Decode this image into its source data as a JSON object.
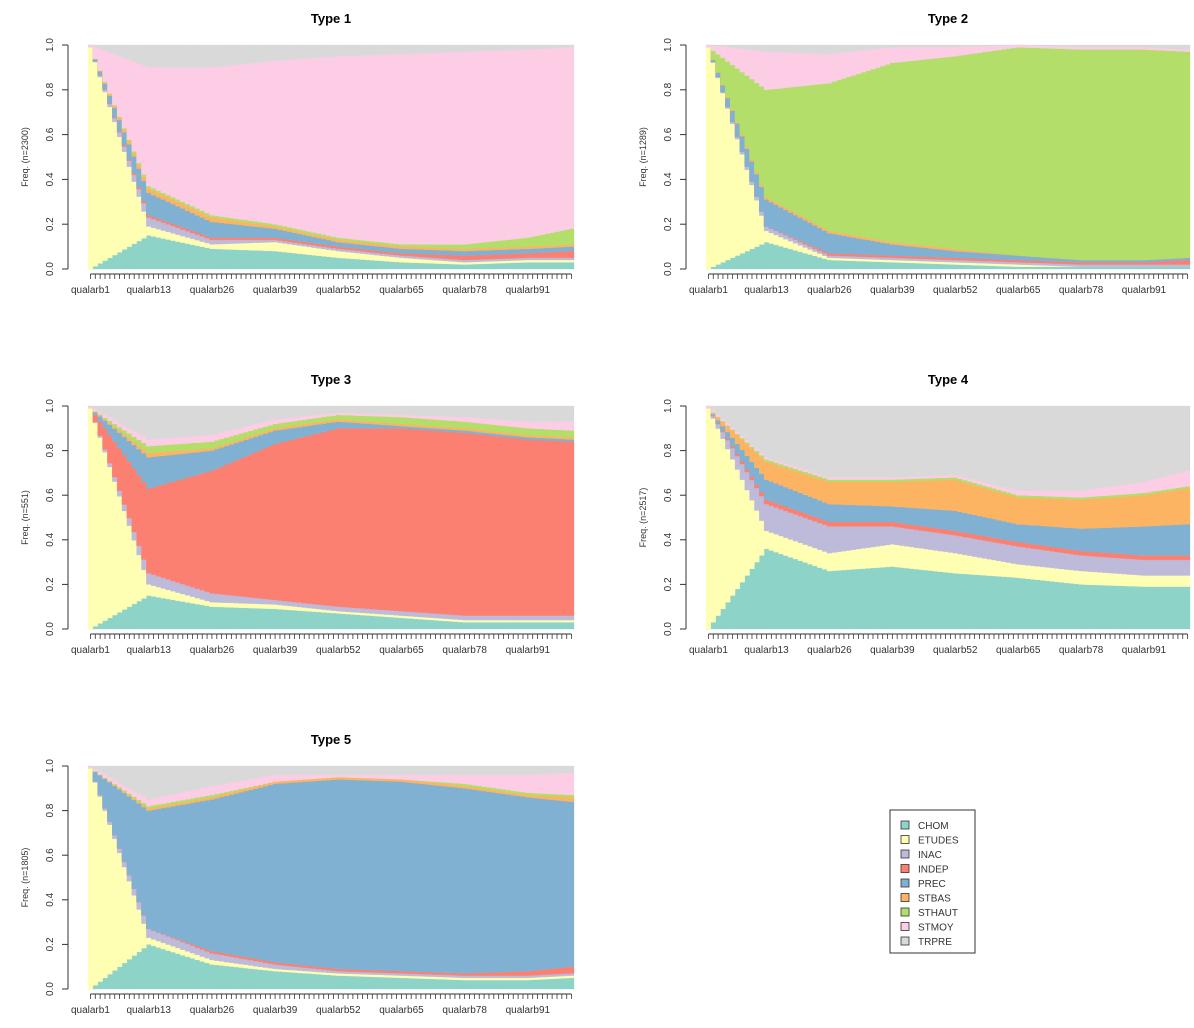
{
  "chart_data": {
    "type": "area",
    "stacked": "100%",
    "x": [
      "qualarb1",
      "qualarb13",
      "qualarb26",
      "qualarb39",
      "qualarb52",
      "qualarb65",
      "qualarb78",
      "qualarb91"
    ],
    "n_periods": 100,
    "key_points": [
      1,
      13,
      26,
      39,
      52,
      65,
      78,
      91,
      100
    ],
    "ylim": [
      0,
      1
    ],
    "yticks": [
      "0.0",
      "0.2",
      "0.4",
      "0.6",
      "0.8",
      "1.0"
    ],
    "categories": [
      "CHOM",
      "ETUDES",
      "INAC",
      "INDEP",
      "PREC",
      "STBAS",
      "STHAUT",
      "STMOY",
      "TRPRE"
    ],
    "colors": {
      "CHOM": "#8dd3c7",
      "ETUDES": "#ffffb3",
      "INAC": "#bebada",
      "INDEP": "#fb8072",
      "PREC": "#80b1d3",
      "STBAS": "#fdb462",
      "STHAUT": "#b3de69",
      "STMOY": "#fccde5",
      "TRPRE": "#d9d9d9"
    },
    "panels": [
      {
        "title": "Type 1",
        "ylabel": "Freq. (n=2300)",
        "series": [
          {
            "name": "CHOM",
            "values": [
              0.0,
              0.15,
              0.09,
              0.08,
              0.05,
              0.03,
              0.02,
              0.03,
              0.03
            ]
          },
          {
            "name": "ETUDES",
            "values": [
              0.99,
              0.04,
              0.02,
              0.04,
              0.03,
              0.02,
              0.01,
              0.01,
              0.01
            ]
          },
          {
            "name": "INAC",
            "values": [
              0.0,
              0.04,
              0.02,
              0.01,
              0.01,
              0.01,
              0.01,
              0.01,
              0.01
            ]
          },
          {
            "name": "INDEP",
            "values": [
              0.0,
              0.01,
              0.01,
              0.01,
              0.01,
              0.01,
              0.02,
              0.02,
              0.03
            ]
          },
          {
            "name": "PREC",
            "values": [
              0.0,
              0.1,
              0.07,
              0.04,
              0.02,
              0.02,
              0.02,
              0.02,
              0.02
            ]
          },
          {
            "name": "STBAS",
            "values": [
              0.0,
              0.02,
              0.02,
              0.01,
              0.01,
              0.01,
              0.01,
              0.01,
              0.01
            ]
          },
          {
            "name": "STHAUT",
            "values": [
              0.0,
              0.01,
              0.01,
              0.01,
              0.01,
              0.01,
              0.02,
              0.04,
              0.07
            ]
          },
          {
            "name": "STMOY",
            "values": [
              0.01,
              0.53,
              0.66,
              0.73,
              0.81,
              0.85,
              0.86,
              0.84,
              0.81
            ]
          },
          {
            "name": "TRPRE",
            "values": [
              0.0,
              0.1,
              0.1,
              0.07,
              0.05,
              0.04,
              0.03,
              0.02,
              0.01
            ]
          }
        ]
      },
      {
        "title": "Type 2",
        "ylabel": "Freq. (n=1289)",
        "series": [
          {
            "name": "CHOM",
            "values": [
              0.0,
              0.12,
              0.04,
              0.03,
              0.02,
              0.01,
              0.01,
              0.01,
              0.01
            ]
          },
          {
            "name": "ETUDES",
            "values": [
              0.99,
              0.05,
              0.01,
              0.01,
              0.01,
              0.01,
              0.0,
              0.0,
              0.0
            ]
          },
          {
            "name": "INAC",
            "values": [
              0.0,
              0.02,
              0.01,
              0.01,
              0.01,
              0.01,
              0.01,
              0.01,
              0.01
            ]
          },
          {
            "name": "INDEP",
            "values": [
              0.0,
              0.0,
              0.01,
              0.01,
              0.01,
              0.01,
              0.01,
              0.01,
              0.02
            ]
          },
          {
            "name": "PREC",
            "values": [
              0.0,
              0.12,
              0.09,
              0.05,
              0.03,
              0.02,
              0.01,
              0.01,
              0.01
            ]
          },
          {
            "name": "STBAS",
            "values": [
              0.0,
              0.01,
              0.01,
              0.01,
              0.01,
              0.0,
              0.0,
              0.0,
              0.0
            ]
          },
          {
            "name": "STHAUT",
            "values": [
              0.0,
              0.48,
              0.66,
              0.8,
              0.86,
              0.93,
              0.94,
              0.94,
              0.92
            ]
          },
          {
            "name": "STMOY",
            "values": [
              0.01,
              0.17,
              0.13,
              0.07,
              0.04,
              0.01,
              0.01,
              0.01,
              0.01
            ]
          },
          {
            "name": "TRPRE",
            "values": [
              0.0,
              0.03,
              0.04,
              0.01,
              0.01,
              0.0,
              0.01,
              0.01,
              0.02
            ]
          }
        ]
      },
      {
        "title": "Type 3",
        "ylabel": "Freq. (n=551)",
        "series": [
          {
            "name": "CHOM",
            "values": [
              0.0,
              0.15,
              0.1,
              0.09,
              0.07,
              0.05,
              0.03,
              0.03,
              0.03
            ]
          },
          {
            "name": "ETUDES",
            "values": [
              0.99,
              0.05,
              0.02,
              0.02,
              0.01,
              0.01,
              0.01,
              0.01,
              0.01
            ]
          },
          {
            "name": "INAC",
            "values": [
              0.0,
              0.05,
              0.04,
              0.02,
              0.02,
              0.02,
              0.02,
              0.02,
              0.02
            ]
          },
          {
            "name": "INDEP",
            "values": [
              0.0,
              0.38,
              0.55,
              0.7,
              0.8,
              0.82,
              0.82,
              0.79,
              0.78
            ]
          },
          {
            "name": "PREC",
            "values": [
              0.0,
              0.14,
              0.09,
              0.06,
              0.03,
              0.01,
              0.01,
              0.01,
              0.01
            ]
          },
          {
            "name": "STBAS",
            "values": [
              0.0,
              0.02,
              0.01,
              0.01,
              0.01,
              0.01,
              0.01,
              0.01,
              0.01
            ]
          },
          {
            "name": "STHAUT",
            "values": [
              0.0,
              0.03,
              0.03,
              0.02,
              0.02,
              0.03,
              0.03,
              0.03,
              0.03
            ]
          },
          {
            "name": "STMOY",
            "values": [
              0.01,
              0.03,
              0.03,
              0.02,
              0.01,
              0.01,
              0.02,
              0.03,
              0.04
            ]
          },
          {
            "name": "TRPRE",
            "values": [
              0.0,
              0.15,
              0.13,
              0.06,
              0.03,
              0.04,
              0.05,
              0.07,
              0.07
            ]
          }
        ]
      },
      {
        "title": "Type 4",
        "ylabel": "Freq. (n=2517)",
        "series": [
          {
            "name": "CHOM",
            "values": [
              0.0,
              0.36,
              0.26,
              0.28,
              0.25,
              0.23,
              0.2,
              0.19,
              0.19
            ]
          },
          {
            "name": "ETUDES",
            "values": [
              0.99,
              0.08,
              0.08,
              0.1,
              0.09,
              0.06,
              0.06,
              0.05,
              0.05
            ]
          },
          {
            "name": "INAC",
            "values": [
              0.0,
              0.12,
              0.12,
              0.08,
              0.08,
              0.08,
              0.07,
              0.07,
              0.07
            ]
          },
          {
            "name": "INDEP",
            "values": [
              0.0,
              0.02,
              0.02,
              0.02,
              0.02,
              0.02,
              0.02,
              0.02,
              0.02
            ]
          },
          {
            "name": "PREC",
            "values": [
              0.0,
              0.09,
              0.08,
              0.07,
              0.09,
              0.08,
              0.1,
              0.13,
              0.14
            ]
          },
          {
            "name": "STBAS",
            "values": [
              0.0,
              0.08,
              0.1,
              0.11,
              0.14,
              0.12,
              0.13,
              0.14,
              0.16
            ]
          },
          {
            "name": "STHAUT",
            "values": [
              0.0,
              0.01,
              0.01,
              0.01,
              0.01,
              0.01,
              0.01,
              0.01,
              0.01
            ]
          },
          {
            "name": "STMOY",
            "values": [
              0.01,
              0.01,
              0.01,
              0.01,
              0.01,
              0.02,
              0.03,
              0.05,
              0.07
            ]
          },
          {
            "name": "TRPRE",
            "values": [
              0.0,
              0.23,
              0.32,
              0.32,
              0.31,
              0.38,
              0.38,
              0.34,
              0.29
            ]
          }
        ]
      },
      {
        "title": "Type 5",
        "ylabel": "Freq. (n=1805)",
        "series": [
          {
            "name": "CHOM",
            "values": [
              0.0,
              0.2,
              0.11,
              0.08,
              0.06,
              0.05,
              0.04,
              0.04,
              0.05
            ]
          },
          {
            "name": "ETUDES",
            "values": [
              0.99,
              0.03,
              0.02,
              0.01,
              0.01,
              0.01,
              0.01,
              0.01,
              0.01
            ]
          },
          {
            "name": "INAC",
            "values": [
              0.0,
              0.04,
              0.03,
              0.02,
              0.01,
              0.01,
              0.01,
              0.01,
              0.01
            ]
          },
          {
            "name": "INDEP",
            "values": [
              0.0,
              0.0,
              0.01,
              0.01,
              0.01,
              0.01,
              0.01,
              0.02,
              0.03
            ]
          },
          {
            "name": "PREC",
            "values": [
              0.0,
              0.53,
              0.68,
              0.8,
              0.85,
              0.85,
              0.83,
              0.78,
              0.74
            ]
          },
          {
            "name": "STBAS",
            "values": [
              0.0,
              0.01,
              0.01,
              0.01,
              0.01,
              0.01,
              0.01,
              0.01,
              0.02
            ]
          },
          {
            "name": "STHAUT",
            "values": [
              0.0,
              0.01,
              0.01,
              0.0,
              0.0,
              0.0,
              0.01,
              0.01,
              0.01
            ]
          },
          {
            "name": "STMOY",
            "values": [
              0.01,
              0.03,
              0.04,
              0.03,
              0.01,
              0.02,
              0.04,
              0.08,
              0.1
            ]
          },
          {
            "name": "TRPRE",
            "values": [
              0.0,
              0.15,
              0.09,
              0.04,
              0.04,
              0.04,
              0.04,
              0.04,
              0.03
            ]
          }
        ]
      }
    ],
    "legend": {
      "position": "bottom-right",
      "labels": [
        "CHOM",
        "ETUDES",
        "INAC",
        "INDEP",
        "PREC",
        "STBAS",
        "STHAUT",
        "STMOY",
        "TRPRE"
      ]
    }
  }
}
